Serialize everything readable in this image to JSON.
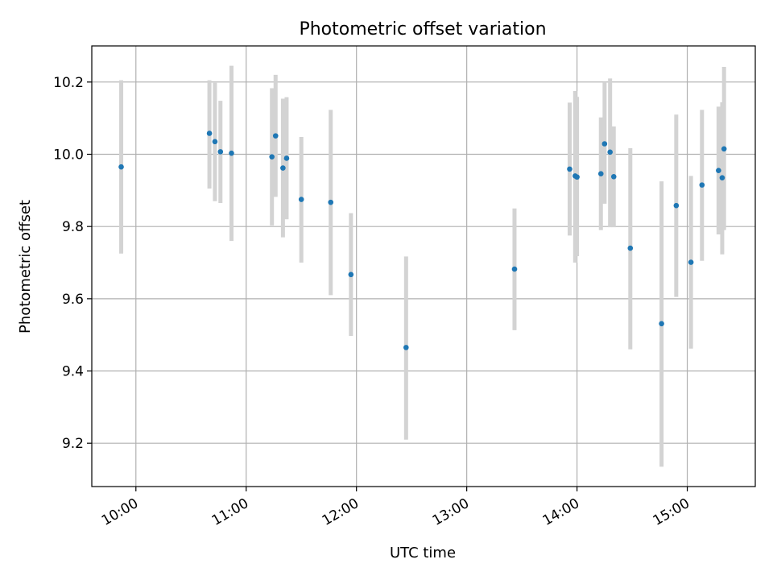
{
  "chart_data": {
    "type": "scatter",
    "title": "Photometric offset variation",
    "xlabel": "UTC time",
    "ylabel": "Photometric offset",
    "xlim": [
      "09:36",
      "15:37"
    ],
    "ylim": [
      9.08,
      10.3
    ],
    "x_ticks": [
      "10:00",
      "11:00",
      "12:00",
      "13:00",
      "14:00",
      "15:00"
    ],
    "y_ticks": [
      "9.2",
      "9.4",
      "9.6",
      "9.8",
      "10.0",
      "10.2"
    ],
    "grid": true,
    "marker_color": "#1f77b4",
    "errorbar_color": "#d3d3d3",
    "series": [
      {
        "x": [
          "09:52",
          "10:40",
          "10:43",
          "10:46",
          "10:52",
          "11:14",
          "11:16",
          "11:20",
          "11:22",
          "11:30",
          "11:46",
          "11:57",
          "12:27",
          "13:26",
          "13:56",
          "13:59",
          "14:00",
          "14:13",
          "14:15",
          "14:18",
          "14:20",
          "14:29",
          "14:46",
          "14:54",
          "15:02",
          "15:08",
          "15:17",
          "15:19",
          "15:20"
        ],
        "y": [
          9.965,
          10.058,
          10.035,
          10.007,
          10.003,
          9.993,
          10.051,
          9.962,
          9.989,
          9.875,
          9.867,
          9.667,
          9.465,
          9.682,
          9.959,
          9.94,
          9.937,
          9.946,
          10.029,
          10.006,
          9.938,
          9.74,
          9.531,
          9.858,
          9.701,
          9.915,
          9.955,
          9.935,
          10.015
        ],
        "y_err_low": [
          9.725,
          9.905,
          9.87,
          9.865,
          9.76,
          9.803,
          9.882,
          9.77,
          9.82,
          9.7,
          9.61,
          9.497,
          9.21,
          9.513,
          9.775,
          9.7,
          9.718,
          9.79,
          9.863,
          9.798,
          9.798,
          9.46,
          9.135,
          9.605,
          9.462,
          9.705,
          9.778,
          9.723,
          9.79
        ],
        "y_err_high": [
          10.205,
          10.205,
          10.198,
          10.148,
          10.245,
          10.183,
          10.22,
          10.154,
          10.158,
          10.048,
          10.123,
          9.837,
          9.717,
          9.85,
          10.143,
          10.175,
          10.159,
          10.102,
          10.2,
          10.21,
          10.077,
          10.017,
          9.925,
          10.11,
          9.94,
          10.123,
          10.132,
          10.144,
          10.242
        ]
      }
    ]
  }
}
